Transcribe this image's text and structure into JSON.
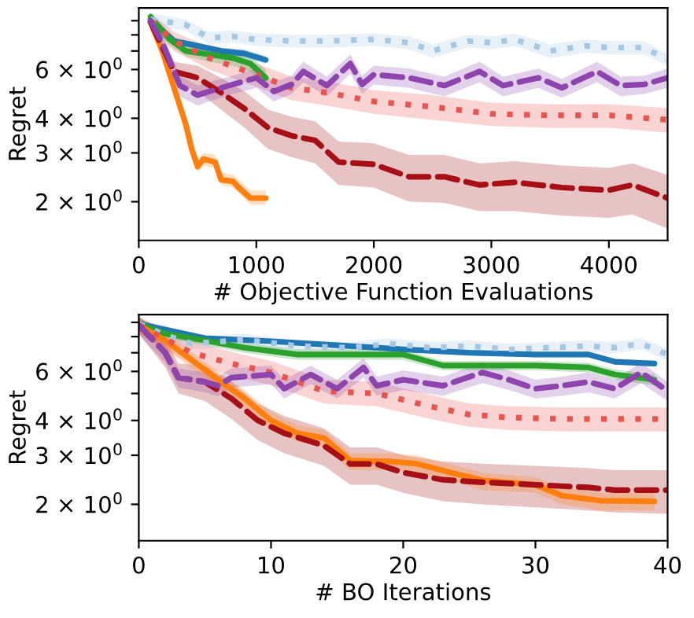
{
  "chart_data": [
    {
      "type": "line",
      "xlabel": "# Objective Function Evaluations",
      "ylabel": "Regret",
      "log": "y",
      "grid": false,
      "xlim": [
        0,
        4500
      ],
      "xticks": [
        0,
        1000,
        2000,
        3000,
        4000
      ],
      "ylim": [
        1.45,
        10
      ],
      "yticks": [
        {
          "value": 2,
          "label": "2 × 10$^{0}$"
        },
        {
          "value": 3,
          "label": "3 × 10$^{0}$"
        },
        {
          "value": 4,
          "label": "4 × 10$^{0}$"
        },
        {
          "value": 5,
          "label": null
        },
        {
          "value": 6,
          "label": "6 × 10$^{0}$"
        },
        {
          "value": 7,
          "label": null
        },
        {
          "value": 8,
          "label": null
        },
        {
          "value": 9,
          "label": null
        }
      ],
      "series": [
        {
          "color": "#a6c8e4",
          "line_style": "dotted",
          "x": [
            100,
            400,
            600,
            800,
            1000,
            1300,
            1600,
            2000,
            2300,
            2500,
            2800,
            3000,
            3200,
            3500,
            3800,
            4000,
            4300,
            4500
          ],
          "values": [
            9.1,
            8.7,
            7.8,
            7.9,
            7.7,
            7.6,
            7.6,
            7.7,
            7.5,
            7.0,
            7.6,
            7.5,
            7.7,
            7.0,
            7.3,
            7.2,
            7.2,
            6.5
          ],
          "lower": [
            8.6,
            8.3,
            7.4,
            7.5,
            7.3,
            7.2,
            7.2,
            7.3,
            7.1,
            6.6,
            7.2,
            7.1,
            7.3,
            6.6,
            6.9,
            6.8,
            6.8,
            6.2
          ],
          "upper": [
            9.6,
            9.1,
            8.2,
            8.3,
            8.1,
            8.0,
            8.0,
            8.1,
            7.9,
            7.4,
            8.0,
            7.9,
            8.1,
            7.4,
            7.7,
            7.6,
            7.6,
            6.8
          ]
        },
        {
          "color": "#e8554e",
          "line_style": "dotted",
          "x": [
            100,
            300,
            600,
            1000,
            1300,
            1600,
            2000,
            2500,
            3000,
            3500,
            4000,
            4500
          ],
          "values": [
            9.0,
            7.6,
            6.6,
            5.75,
            5.15,
            4.95,
            4.6,
            4.4,
            4.15,
            4.1,
            4.1,
            3.95
          ],
          "lower": [
            8.4,
            7.0,
            6.0,
            5.2,
            4.65,
            4.45,
            4.15,
            3.95,
            3.75,
            3.7,
            3.7,
            3.55
          ],
          "upper": [
            9.6,
            8.2,
            7.2,
            6.3,
            5.65,
            5.45,
            5.05,
            4.85,
            4.55,
            4.5,
            4.5,
            4.35
          ]
        },
        {
          "color": "#a50f15",
          "line_style": "dashed",
          "x": [
            100,
            300,
            500,
            700,
            900,
            1100,
            1300,
            1500,
            1700,
            2000,
            2300,
            2600,
            2900,
            3200,
            3600,
            4000,
            4200,
            4500
          ],
          "values": [
            8.9,
            5.9,
            5.6,
            4.95,
            4.33,
            3.7,
            3.46,
            3.33,
            2.78,
            2.73,
            2.46,
            2.46,
            2.3,
            2.35,
            2.25,
            2.2,
            2.3,
            2.06
          ],
          "lower": [
            8.3,
            5.4,
            5.0,
            4.3,
            3.7,
            3.1,
            2.9,
            2.75,
            2.3,
            2.25,
            2.0,
            1.98,
            1.85,
            1.85,
            1.78,
            1.75,
            1.8,
            1.6
          ],
          "upper": [
            9.5,
            6.4,
            6.2,
            5.6,
            5.0,
            4.3,
            4.05,
            3.9,
            3.3,
            3.25,
            2.95,
            2.95,
            2.75,
            2.8,
            2.7,
            2.65,
            2.75,
            2.5
          ]
        },
        {
          "color": "#8e44ad",
          "line_style": "dashed",
          "x": [
            100,
            200,
            350,
            500,
            600,
            800,
            1000,
            1150,
            1300,
            1400,
            1600,
            1800,
            1900,
            2000,
            2300,
            2600,
            2900,
            3100,
            3400,
            3600,
            3900,
            4100,
            4300,
            4500
          ],
          "values": [
            9.0,
            7.5,
            5.25,
            4.85,
            5.0,
            5.3,
            5.6,
            5.0,
            5.3,
            5.9,
            5.25,
            6.3,
            5.3,
            5.75,
            5.6,
            5.25,
            5.9,
            5.25,
            5.6,
            5.15,
            5.9,
            5.25,
            5.3,
            5.6
          ],
          "lower": [
            8.3,
            6.9,
            4.8,
            4.45,
            4.6,
            4.9,
            5.15,
            4.6,
            4.9,
            5.4,
            4.8,
            5.8,
            4.9,
            5.3,
            5.15,
            4.8,
            5.4,
            4.8,
            5.15,
            4.75,
            5.4,
            4.8,
            4.9,
            5.15
          ],
          "upper": [
            9.7,
            8.1,
            5.7,
            5.25,
            5.4,
            5.7,
            6.05,
            5.4,
            5.7,
            6.4,
            5.65,
            6.8,
            5.7,
            6.2,
            6.05,
            5.65,
            6.4,
            5.65,
            6.05,
            5.55,
            6.4,
            5.65,
            5.7,
            6.05
          ]
        },
        {
          "color": "#1f77b4",
          "line_style": "solid",
          "x": [
            100,
            300,
            500,
            700,
            900,
            1080
          ],
          "values": [
            9.1,
            7.6,
            7.3,
            7.0,
            6.85,
            6.5
          ],
          "lower": [
            8.8,
            7.4,
            7.1,
            6.8,
            6.6,
            6.3
          ],
          "upper": [
            9.4,
            7.8,
            7.5,
            7.2,
            7.1,
            6.7
          ]
        },
        {
          "color": "#2ca02c",
          "line_style": "solid",
          "x": [
            100,
            250,
            400,
            600,
            800,
            950,
            1080
          ],
          "values": [
            9.3,
            7.8,
            7.0,
            6.8,
            6.6,
            6.3,
            5.6
          ],
          "lower": [
            9.0,
            7.4,
            6.7,
            6.4,
            6.2,
            5.9,
            5.2
          ],
          "upper": [
            9.6,
            8.2,
            7.3,
            7.2,
            7.0,
            6.7,
            6.0
          ]
        },
        {
          "color": "#ff7f0e",
          "line_style": "solid",
          "x": [
            100,
            200,
            300,
            400,
            450,
            500,
            550,
            650,
            700,
            800,
            850,
            950,
            1080
          ],
          "values": [
            8.9,
            7.0,
            5.15,
            3.8,
            3.1,
            2.68,
            2.85,
            2.78,
            2.4,
            2.37,
            2.25,
            2.06,
            2.06
          ],
          "lower": [
            8.5,
            6.6,
            4.9,
            3.6,
            2.9,
            2.55,
            2.7,
            2.65,
            2.3,
            2.25,
            2.15,
            1.95,
            1.95
          ],
          "upper": [
            9.4,
            7.4,
            5.5,
            4.0,
            3.3,
            2.85,
            3.0,
            2.95,
            2.55,
            2.5,
            2.4,
            2.2,
            2.2
          ]
        }
      ]
    },
    {
      "type": "line",
      "xlabel": "# BO Iterations",
      "ylabel": "Regret",
      "log": "y",
      "grid": false,
      "xlim": [
        0,
        40
      ],
      "xticks": [
        0,
        10,
        20,
        30,
        40
      ],
      "ylim": [
        1.48,
        9.6
      ],
      "yticks": [
        {
          "value": 2,
          "label": "2 × 10$^{0}$"
        },
        {
          "value": 3,
          "label": "3 × 10$^{0}$"
        },
        {
          "value": 4,
          "label": "4 × 10$^{0}$"
        },
        {
          "value": 5,
          "label": null
        },
        {
          "value": 6,
          "label": "6 × 10$^{0}$"
        },
        {
          "value": 7,
          "label": null
        },
        {
          "value": 8,
          "label": null
        },
        {
          "value": 9,
          "label": null
        }
      ],
      "series": [
        {
          "color": "#a6c8e4",
          "line_style": "dotted",
          "x": [
            0,
            2,
            4,
            8,
            12,
            16,
            19,
            22,
            25,
            28,
            31,
            34,
            36,
            38,
            40
          ],
          "values": [
            8.9,
            8.1,
            7.55,
            7.8,
            7.4,
            7.3,
            7.55,
            7.3,
            7.4,
            7.2,
            7.3,
            7.4,
            7.3,
            7.55,
            6.9
          ],
          "lower": [
            8.45,
            7.7,
            7.2,
            7.4,
            7.05,
            6.95,
            7.2,
            6.95,
            7.05,
            6.85,
            6.95,
            7.05,
            6.95,
            7.2,
            6.55
          ],
          "upper": [
            9.35,
            8.5,
            7.9,
            8.2,
            7.75,
            7.65,
            7.9,
            7.65,
            7.75,
            7.55,
            7.65,
            7.75,
            7.65,
            7.9,
            7.25
          ]
        },
        {
          "color": "#e8554e",
          "line_style": "dotted",
          "x": [
            0,
            4,
            7,
            10,
            14,
            18,
            22,
            25,
            28,
            32,
            36,
            40
          ],
          "values": [
            8.8,
            7.0,
            6.4,
            5.95,
            5.1,
            5.0,
            4.5,
            4.2,
            4.1,
            4.05,
            4.05,
            4.05
          ],
          "lower": [
            8.2,
            6.35,
            5.8,
            5.35,
            4.6,
            4.5,
            4.05,
            3.8,
            3.7,
            3.65,
            3.65,
            3.65
          ],
          "upper": [
            9.4,
            7.7,
            7.05,
            6.55,
            5.6,
            5.5,
            4.95,
            4.6,
            4.5,
            4.45,
            4.45,
            4.45
          ]
        },
        {
          "color": "#a50f15",
          "line_style": "dashed",
          "x": [
            0,
            2,
            3,
            5,
            7,
            9,
            11,
            14,
            16,
            18,
            20,
            23,
            26,
            30,
            34,
            36,
            40
          ],
          "values": [
            8.8,
            7.0,
            5.7,
            5.5,
            4.8,
            4.0,
            3.6,
            3.25,
            2.79,
            2.79,
            2.6,
            2.45,
            2.4,
            2.35,
            2.3,
            2.25,
            2.25
          ],
          "lower": [
            8.2,
            6.2,
            5.0,
            4.7,
            4.05,
            3.4,
            3.05,
            2.75,
            2.35,
            2.35,
            2.2,
            2.05,
            2.0,
            1.95,
            1.9,
            1.87,
            1.85
          ],
          "upper": [
            9.4,
            7.9,
            6.4,
            6.3,
            5.5,
            4.6,
            4.15,
            3.75,
            3.2,
            3.2,
            3.0,
            2.85,
            2.8,
            2.75,
            2.7,
            2.65,
            2.65
          ]
        },
        {
          "color": "#8e44ad",
          "line_style": "dashed",
          "x": [
            0,
            2,
            3,
            5,
            6,
            7,
            10,
            11,
            13,
            15,
            17,
            18,
            20,
            23,
            26,
            28,
            30,
            32,
            34,
            36,
            38,
            40
          ],
          "values": [
            8.8,
            7.0,
            5.7,
            5.5,
            5.33,
            5.7,
            5.85,
            5.2,
            5.85,
            5.2,
            6.2,
            5.33,
            5.6,
            5.33,
            5.95,
            5.6,
            5.2,
            5.33,
            5.5,
            5.2,
            5.95,
            5.1
          ],
          "lower": [
            8.1,
            6.45,
            5.25,
            5.05,
            4.9,
            5.25,
            5.4,
            4.8,
            5.4,
            4.8,
            5.7,
            4.9,
            5.15,
            4.9,
            5.45,
            5.15,
            4.8,
            4.9,
            5.05,
            4.8,
            5.45,
            4.7
          ],
          "upper": [
            9.5,
            7.55,
            6.15,
            5.95,
            5.75,
            6.15,
            6.3,
            5.6,
            6.3,
            5.6,
            6.7,
            5.75,
            6.05,
            5.75,
            6.45,
            6.05,
            5.6,
            5.75,
            5.95,
            5.6,
            6.45,
            5.5
          ]
        },
        {
          "color": "#1f77b4",
          "line_style": "solid",
          "x": [
            0,
            5,
            10,
            15,
            20,
            25,
            30,
            34,
            36,
            39
          ],
          "values": [
            8.9,
            7.9,
            7.7,
            7.45,
            7.2,
            7.0,
            6.9,
            6.9,
            6.5,
            6.4
          ],
          "lower": [
            8.7,
            7.75,
            7.55,
            7.3,
            7.05,
            6.85,
            6.75,
            6.75,
            6.35,
            6.25
          ],
          "upper": [
            9.1,
            8.05,
            7.85,
            7.6,
            7.35,
            7.15,
            7.05,
            7.05,
            6.65,
            6.55
          ]
        },
        {
          "color": "#2ca02c",
          "line_style": "solid",
          "x": [
            0,
            2,
            5,
            8,
            12,
            20,
            23,
            30,
            34,
            36,
            39
          ],
          "values": [
            8.9,
            8.2,
            7.75,
            7.3,
            6.9,
            6.9,
            6.3,
            6.3,
            6.2,
            5.85,
            5.6
          ],
          "lower": [
            8.55,
            7.9,
            7.45,
            7.0,
            6.6,
            6.6,
            6.05,
            6.05,
            5.95,
            5.6,
            5.35
          ],
          "upper": [
            9.25,
            8.5,
            8.05,
            7.6,
            7.2,
            7.2,
            6.55,
            6.55,
            6.45,
            6.1,
            5.85
          ]
        },
        {
          "color": "#ff7f0e",
          "line_style": "solid",
          "x": [
            0,
            2,
            4,
            6,
            8,
            10,
            12,
            14,
            16,
            19,
            21,
            24,
            26,
            30,
            32,
            35,
            39
          ],
          "values": [
            8.8,
            7.75,
            6.6,
            5.6,
            4.8,
            4.0,
            3.6,
            3.46,
            2.87,
            2.85,
            2.8,
            2.57,
            2.44,
            2.35,
            2.15,
            2.06,
            2.05
          ],
          "lower": [
            8.2,
            7.2,
            6.15,
            5.2,
            4.45,
            3.7,
            3.35,
            3.2,
            2.65,
            2.65,
            2.6,
            2.4,
            2.25,
            2.2,
            2.0,
            1.9,
            1.9
          ],
          "upper": [
            9.4,
            8.3,
            7.05,
            6.0,
            5.15,
            4.3,
            3.85,
            3.7,
            3.05,
            3.05,
            3.0,
            2.75,
            2.6,
            2.5,
            2.3,
            2.2,
            2.2
          ]
        }
      ]
    }
  ]
}
